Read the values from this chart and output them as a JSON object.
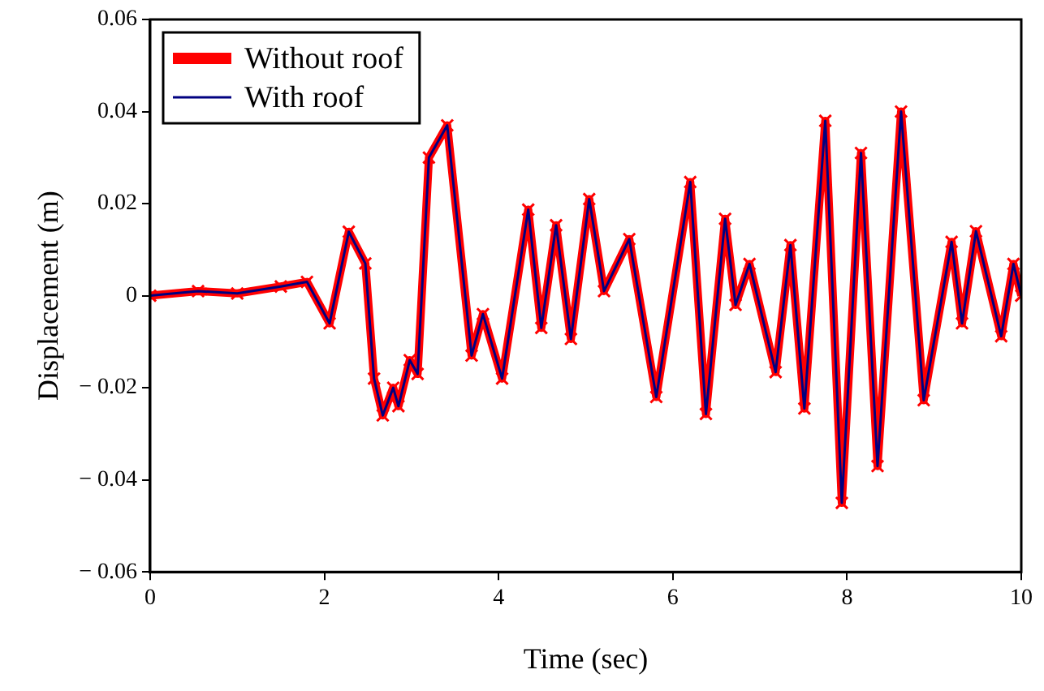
{
  "chart_data": {
    "type": "line",
    "xlabel": "Time (sec)",
    "ylabel": "Displacement (m)",
    "x": [
      0,
      0.55,
      1,
      1.5,
      1.8,
      2.06,
      2.28,
      2.47,
      2.57,
      2.67,
      2.79,
      2.85,
      2.98,
      3.07,
      3.2,
      3.41,
      3.69,
      3.82,
      4.04,
      4.34,
      4.49,
      4.66,
      4.83,
      5.04,
      5.21,
      5.5,
      5.81,
      6.2,
      6.38,
      6.6,
      6.72,
      6.88,
      7.18,
      7.35,
      7.51,
      7.75,
      7.94,
      8.16,
      8.35,
      8.62,
      8.88,
      9.2,
      9.32,
      9.48,
      9.77,
      9.91,
      10
    ],
    "series": [
      {
        "name": "Without roof",
        "color": "#ff0000",
        "marker": "cross",
        "values": [
          0,
          0.001,
          0.0005,
          0.002,
          0.003,
          -0.006,
          0.0139,
          0.007,
          -0.018,
          -0.026,
          -0.02,
          -0.024,
          -0.014,
          -0.017,
          0.03,
          0.037,
          -0.013,
          -0.004,
          -0.018,
          0.0187,
          -0.007,
          0.0153,
          -0.0094,
          0.021,
          0.001,
          0.0123,
          -0.022,
          0.0247,
          -0.0257,
          0.0167,
          -0.002,
          0.0069,
          -0.0166,
          0.011,
          -0.0245,
          0.038,
          -0.045,
          0.031,
          -0.037,
          0.04,
          -0.0227,
          0.0117,
          -0.006,
          0.014,
          -0.0088,
          0.0069,
          0
        ]
      },
      {
        "name": "With roof",
        "color": "#000080",
        "marker": "none",
        "values": [
          0,
          0.001,
          0.0005,
          0.002,
          0.003,
          -0.006,
          0.0139,
          0.007,
          -0.018,
          -0.026,
          -0.02,
          -0.024,
          -0.014,
          -0.017,
          0.03,
          0.037,
          -0.013,
          -0.004,
          -0.018,
          0.0187,
          -0.007,
          0.0153,
          -0.0094,
          0.021,
          0.001,
          0.0123,
          -0.022,
          0.0247,
          -0.0257,
          0.0167,
          -0.002,
          0.0069,
          -0.0166,
          0.011,
          -0.0245,
          0.038,
          -0.045,
          0.031,
          -0.037,
          0.04,
          -0.0227,
          0.0117,
          -0.006,
          0.014,
          -0.0088,
          0.0069,
          0
        ]
      }
    ],
    "xlim": [
      0,
      10
    ],
    "xticks": [
      0,
      2,
      4,
      6,
      8,
      10
    ],
    "ylim": [
      -0.06,
      0.06
    ],
    "yticks": [
      {
        "value": -0.06,
        "label": "− 0.06"
      },
      {
        "value": -0.04,
        "label": "− 0.04"
      },
      {
        "value": -0.02,
        "label": "− 0.02"
      },
      0,
      0.02,
      0.04,
      0.06
    ],
    "grid": false,
    "legend": "top left",
    "line_style": "solid"
  }
}
